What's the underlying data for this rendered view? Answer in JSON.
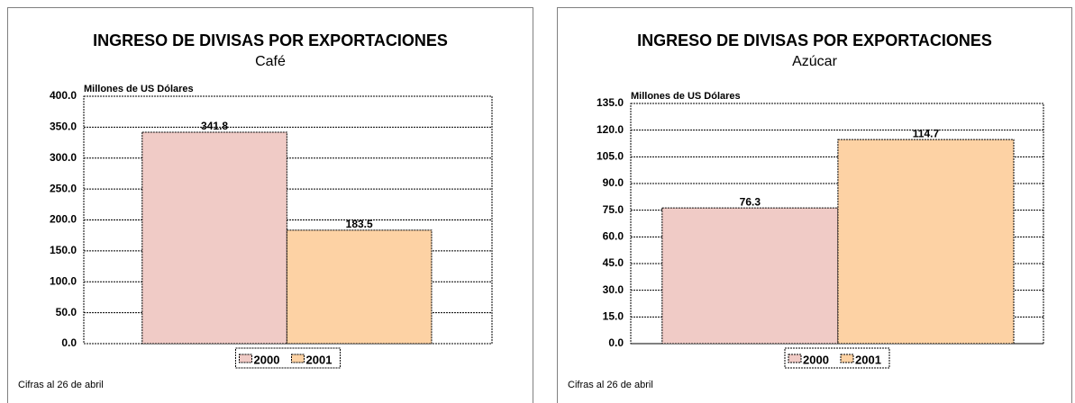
{
  "chart_data": [
    {
      "type": "bar",
      "title": "INGRESO DE DIVISAS POR EXPORTACIONES",
      "subtitle": "Café",
      "ylabel": "Millones de US Dólares",
      "categories": [
        null
      ],
      "series": [
        {
          "name": "2000",
          "color": "#f0cbc6",
          "values": [
            341.8
          ]
        },
        {
          "name": "2001",
          "color": "#fdd2a4",
          "values": [
            183.5
          ]
        }
      ],
      "ylim": [
        0,
        400
      ],
      "yticks": [
        {
          "value": 0,
          "label": "0.0"
        },
        {
          "value": 50,
          "label": "50.0"
        },
        {
          "value": 100,
          "label": "100.0"
        },
        {
          "value": 150,
          "label": "150.0"
        },
        {
          "value": 200,
          "label": "200.0"
        },
        {
          "value": 250,
          "label": "250.0"
        },
        {
          "value": 300,
          "label": "300.0"
        },
        {
          "value": 350,
          "label": "350.0"
        },
        {
          "value": 400,
          "label": "400.0"
        }
      ],
      "grid": true,
      "legend": "bottom",
      "note": "Cifras al 26 de abril"
    },
    {
      "type": "bar",
      "title": "INGRESO DE DIVISAS POR EXPORTACIONES",
      "subtitle": "Azúcar",
      "ylabel": "Millones de US Dólares",
      "categories": [
        null
      ],
      "series": [
        {
          "name": "2000",
          "color": "#f0cbc6",
          "values": [
            76.3
          ]
        },
        {
          "name": "2001",
          "color": "#fdd2a4",
          "values": [
            114.7
          ]
        }
      ],
      "ylim": [
        0,
        135
      ],
      "yticks": [
        {
          "value": 0,
          "label": "0.0"
        },
        {
          "value": 15,
          "label": "15.0"
        },
        {
          "value": 30,
          "label": "30.0"
        },
        {
          "value": 45,
          "label": "45.0"
        },
        {
          "value": 60,
          "label": "60.0"
        },
        {
          "value": 75,
          "label": "75.0"
        },
        {
          "value": 90,
          "label": "90.0"
        },
        {
          "value": 105,
          "label": "105.0"
        },
        {
          "value": 120,
          "label": "120.0"
        },
        {
          "value": 135,
          "label": "135.0"
        }
      ],
      "grid": true,
      "legend": "bottom",
      "note": "Cifras al 26 de abril"
    }
  ]
}
